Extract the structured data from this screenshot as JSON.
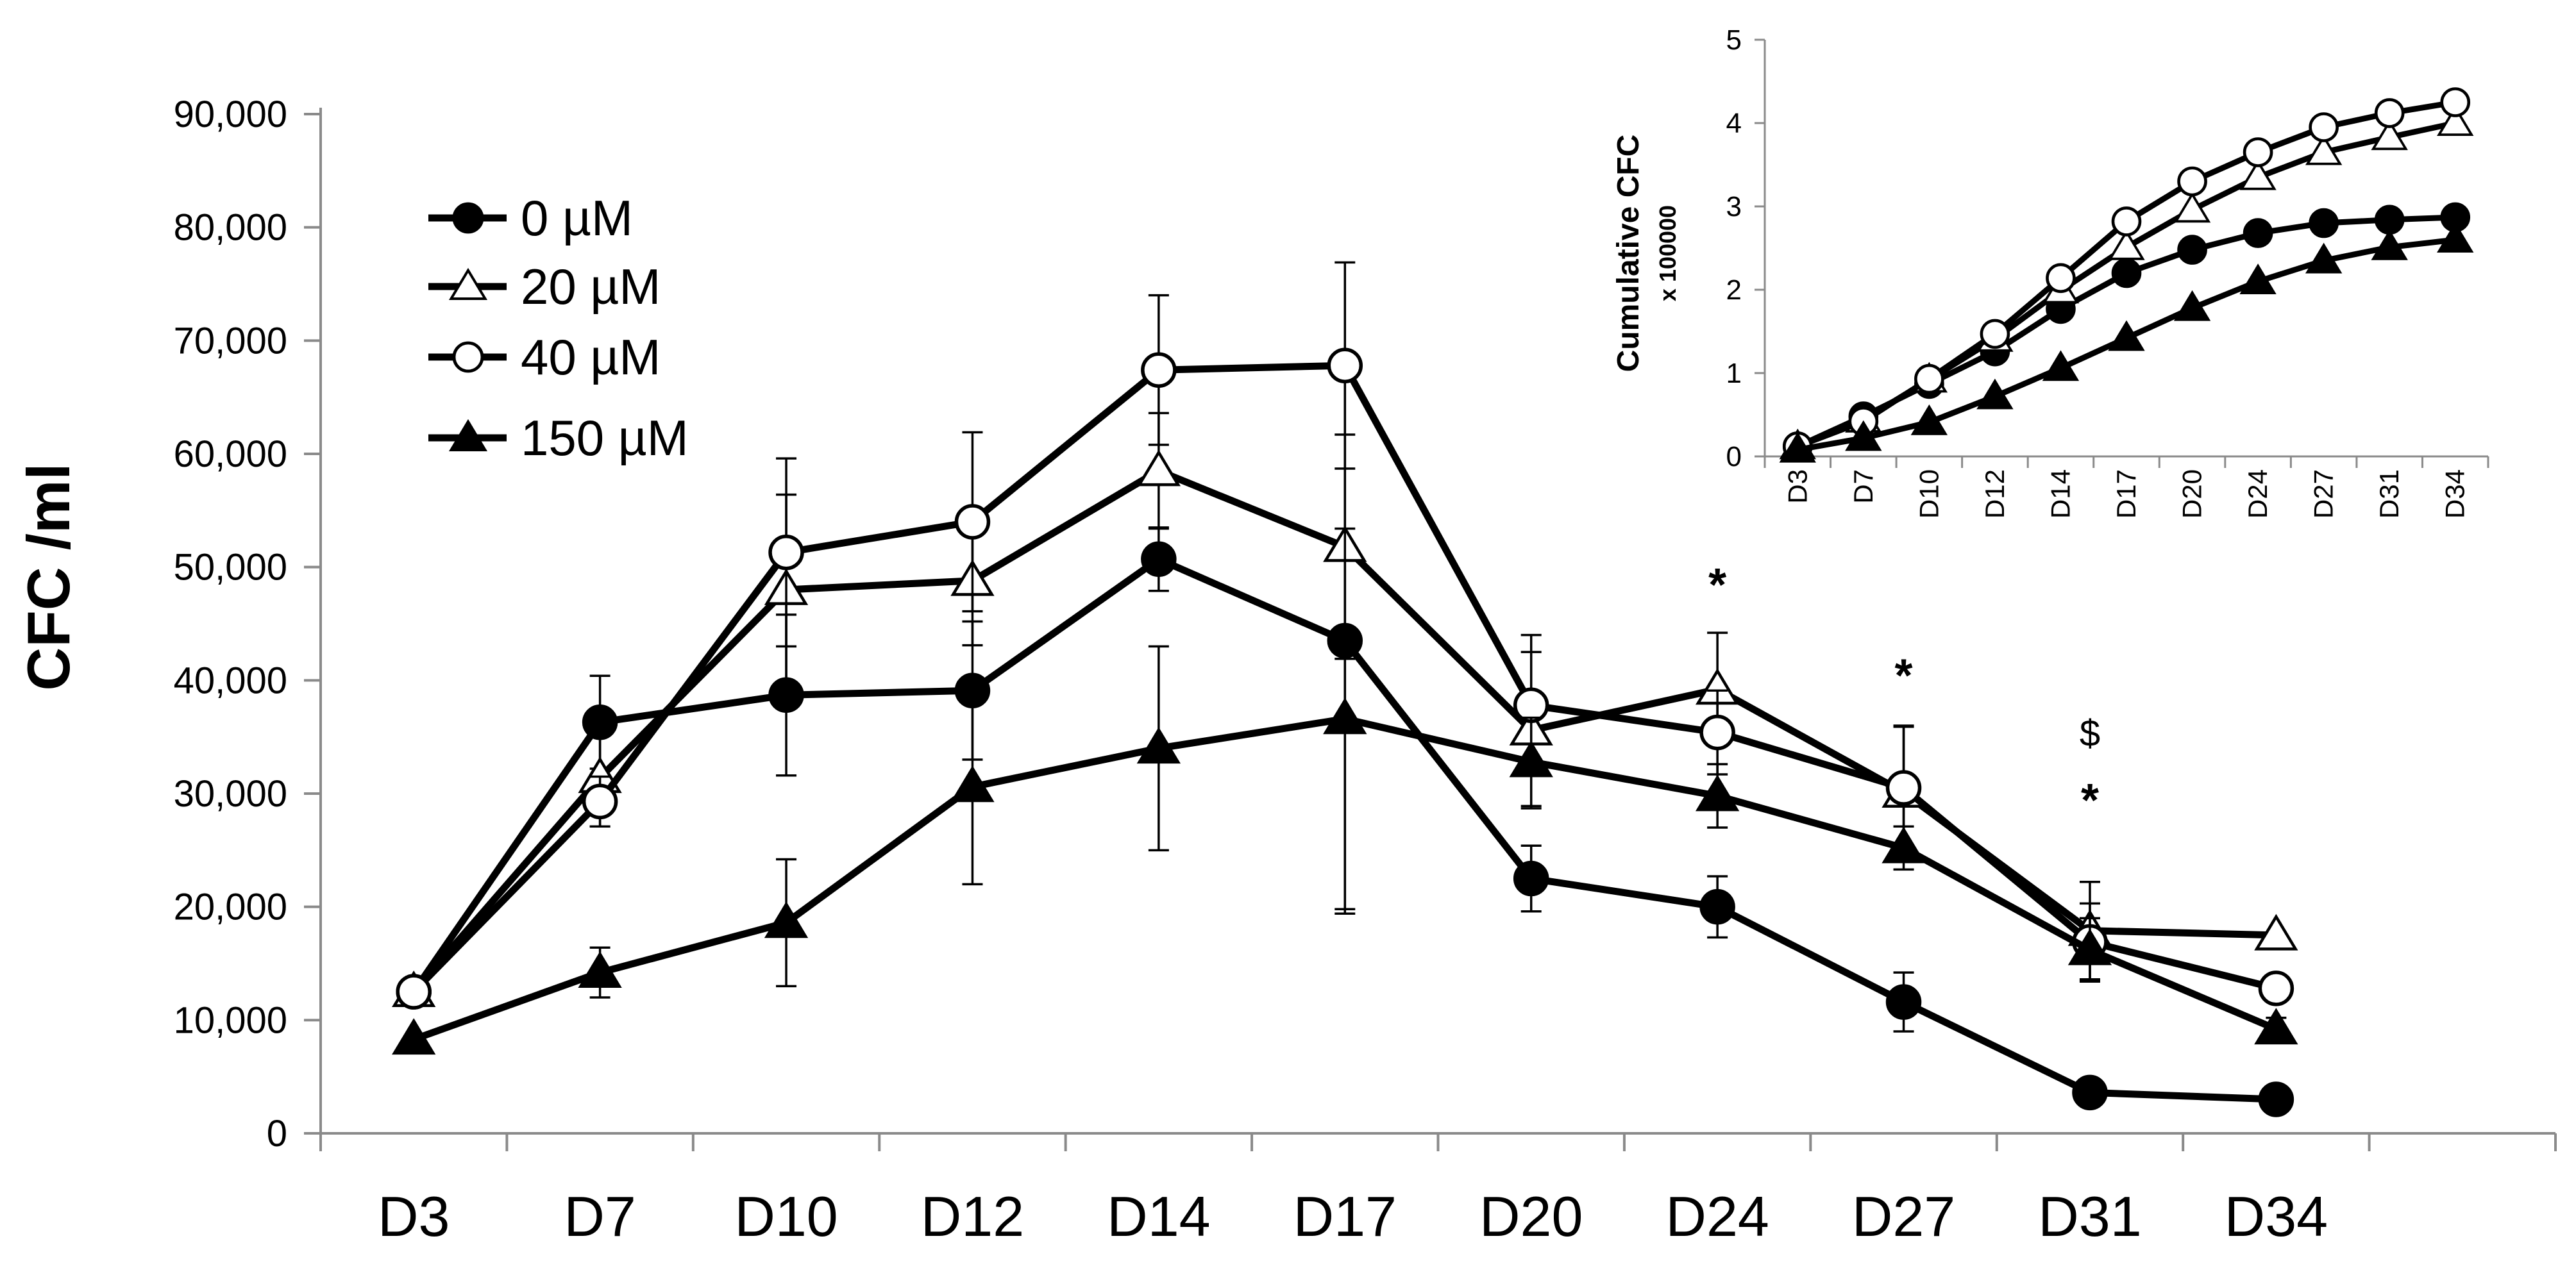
{
  "chart_data": [
    {
      "type": "line",
      "title": "",
      "xlabel": "",
      "ylabel": "CFC /ml",
      "ylim": [
        0,
        90000
      ],
      "yticks": [
        0,
        10000,
        20000,
        30000,
        40000,
        50000,
        60000,
        70000,
        80000,
        90000
      ],
      "ytick_labels": [
        "0",
        "10,000",
        "20,000",
        "30,000",
        "40,000",
        "50,000",
        "60,000",
        "70,000",
        "80,000",
        "90,000"
      ],
      "categories": [
        "D3",
        "D7",
        "D10",
        "D12",
        "D14",
        "D17",
        "D20",
        "D24",
        "D27",
        "D31",
        "D34"
      ],
      "legend_position": "top-left",
      "series": [
        {
          "name": "0 µM",
          "marker": "filled-circle",
          "values": [
            12500,
            36300,
            38700,
            39100,
            50700,
            43500,
            22500,
            20000,
            11600,
            3600,
            3000
          ],
          "errors": [
            0,
            4100,
            7100,
            6100,
            2800,
            24100,
            2900,
            2700,
            2600,
            0,
            0
          ]
        },
        {
          "name": "20 µM",
          "marker": "open-triangle",
          "values": [
            12500,
            31400,
            48000,
            48800,
            58500,
            51800,
            35600,
            39200,
            30100,
            17900,
            17500
          ],
          "errors": [
            0,
            4300,
            8400,
            5700,
            5100,
            9900,
            6900,
            5000,
            5800,
            4300,
            0
          ]
        },
        {
          "name": "40 µM",
          "marker": "open-circle",
          "values": [
            12500,
            29300,
            51300,
            54000,
            67400,
            67800,
            37800,
            35400,
            30500,
            16900,
            12800
          ],
          "errors": [
            0,
            2200,
            8300,
            7900,
            6600,
            9100,
            6200,
            3700,
            5500,
            3400,
            0
          ]
        },
        {
          "name": "150 µM",
          "marker": "filled-triangle",
          "values": [
            8300,
            14200,
            18600,
            30600,
            34000,
            36600,
            32800,
            29800,
            25200,
            16200,
            9200
          ],
          "errors": [
            0,
            2200,
            5600,
            8600,
            9000,
            16800,
            3900,
            2800,
            1900,
            2800,
            1000
          ]
        }
      ],
      "annotations": [
        {
          "text": "*",
          "category": "D24",
          "y": 48500
        },
        {
          "text": "*",
          "category": "D27",
          "y": 40500
        },
        {
          "text": "$",
          "category": "D31",
          "y": 35700
        },
        {
          "text": "*",
          "category": "D31",
          "y": 29500
        }
      ]
    },
    {
      "type": "line",
      "title": "",
      "xlabel": "",
      "ylabel": "Cumulative CFC",
      "ylabel_sub": "x 100000",
      "ylim": [
        0,
        5
      ],
      "yticks": [
        0,
        1,
        2,
        3,
        4,
        5
      ],
      "ytick_labels": [
        "0",
        "1",
        "2",
        "3",
        "4",
        "5"
      ],
      "categories": [
        "D3",
        "D7",
        "D10",
        "D12",
        "D14",
        "D17",
        "D20",
        "D24",
        "D27",
        "D31",
        "D34"
      ],
      "series": [
        {
          "name": "0 µM",
          "marker": "filled-circle",
          "values": [
            0.12,
            0.48,
            0.87,
            1.26,
            1.77,
            2.2,
            2.48,
            2.68,
            2.8,
            2.84,
            2.87
          ]
        },
        {
          "name": "20 µM",
          "marker": "open-triangle",
          "values": [
            0.12,
            0.44,
            0.92,
            1.41,
            1.99,
            2.51,
            2.96,
            3.35,
            3.65,
            3.83,
            4.0
          ]
        },
        {
          "name": "40 µM",
          "marker": "open-circle",
          "values": [
            0.12,
            0.42,
            0.93,
            1.47,
            2.14,
            2.82,
            3.3,
            3.65,
            3.95,
            4.12,
            4.25
          ]
        },
        {
          "name": "150 µM",
          "marker": "filled-triangle",
          "values": [
            0.08,
            0.22,
            0.41,
            0.72,
            1.06,
            1.42,
            1.78,
            2.1,
            2.35,
            2.51,
            2.6
          ]
        }
      ]
    }
  ]
}
